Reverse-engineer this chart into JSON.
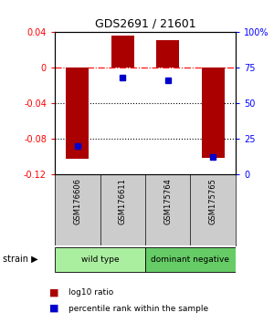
{
  "title": "GDS2691 / 21601",
  "samples": [
    "GSM176606",
    "GSM176611",
    "GSM175764",
    "GSM175765"
  ],
  "log10_ratio": [
    -0.102,
    0.036,
    0.031,
    -0.101
  ],
  "percentile_rank": [
    20,
    68,
    66,
    12
  ],
  "ylim_left": [
    -0.12,
    0.04
  ],
  "ylim_right": [
    0,
    100
  ],
  "yticks_left": [
    -0.12,
    -0.08,
    -0.04,
    0.0,
    0.04
  ],
  "yticks_right": [
    0,
    25,
    50,
    75,
    100
  ],
  "ytick_labels_right": [
    "0",
    "25",
    "50",
    "75",
    "100%"
  ],
  "groups": [
    {
      "label": "wild type",
      "indices": [
        0,
        1
      ],
      "color": "#aaeea0"
    },
    {
      "label": "dominant negative",
      "indices": [
        2,
        3
      ],
      "color": "#66cc66"
    }
  ],
  "bar_color": "#AA0000",
  "dot_color": "#0000CC",
  "bar_width": 0.5,
  "grid_lines": [
    0.0,
    -0.04,
    -0.08
  ],
  "background_color": "#ffffff",
  "plot_bg_color": "#ffffff",
  "label_area_color": "#cccccc"
}
